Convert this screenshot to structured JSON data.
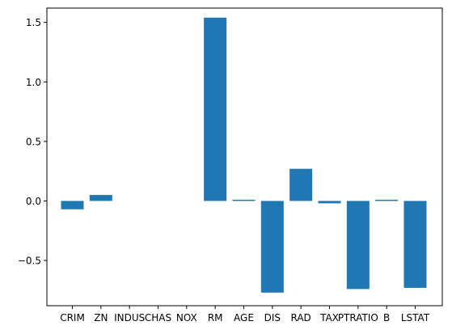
{
  "chart_data": {
    "type": "bar",
    "title": "",
    "xlabel": "",
    "ylabel": "",
    "categories": [
      "CRIM",
      "ZN",
      "INDUS",
      "CHAS",
      "NOX",
      "RM",
      "AGE",
      "DIS",
      "RAD",
      "TAX",
      "PTRATIO",
      "B",
      "LSTAT"
    ],
    "values": [
      -0.07,
      0.05,
      0.0,
      0.0,
      0.0,
      1.54,
      0.01,
      -0.77,
      0.27,
      -0.02,
      -0.74,
      0.01,
      -0.73
    ],
    "ylim": [
      -0.88,
      1.62
    ],
    "yticks": [
      -0.5,
      0.0,
      0.5,
      1.0,
      1.5
    ],
    "ytick_labels": [
      "−0.5",
      "0.0",
      "0.5",
      "1.0",
      "1.5"
    ],
    "bar_color": "#1f77b4",
    "grid": false,
    "legend": "none"
  }
}
